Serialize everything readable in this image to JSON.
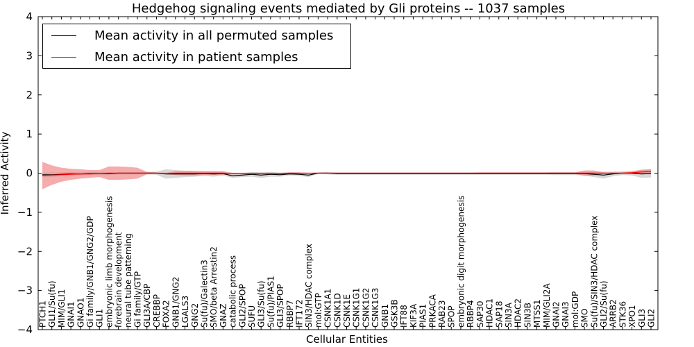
{
  "chart_data": {
    "type": "line",
    "title": "Hedgehog signaling events mediated by Gli proteins -- 1037 samples",
    "xlabel": "Cellular Entities",
    "ylabel": "Inferred Activity",
    "ylim": [
      -4,
      4
    ],
    "yticks": [
      -4,
      -3,
      -2,
      -1,
      0,
      1,
      2,
      3,
      4
    ],
    "ytick_labels": [
      "−4",
      "−3",
      "−2",
      "−1",
      "0",
      "1",
      "2",
      "3",
      "4"
    ],
    "categories": [
      "PTCH1",
      "GLI1/Su(fu)",
      "MIM/GLI1",
      "GNAI1",
      "GNAO1",
      "Gi family/GNB1/GNG2/GDP",
      "GLI1",
      "embryonic limb morphogenesis",
      "forebrain development",
      "neural tube patterning",
      "Gi family/GTP",
      "GLI3A/CBP",
      "CREBBP",
      "FOXA2",
      "GNB1/GNG2",
      "LGALS3",
      "GNG2",
      "Su(fu)/Galectin3",
      "SMO/beta Arrestin2",
      "GNAZ",
      "catabolic process",
      "GLI2/SPOP",
      "SUFU",
      "GLI3/Su(fu)",
      "Su(fu)/PIAS1",
      "GLI3/SPOP",
      "RBBP7",
      "IFT172",
      "SIN3/HDAC complex",
      "mol:GTP",
      "CSNK1A1",
      "CSNK1D",
      "CSNK1E",
      "CSNK1G1",
      "CSNK1G2",
      "CSNK1G3",
      "GNB1",
      "GSK3B",
      "IFT88",
      "KIF3A",
      "PIAS1",
      "PRKACA",
      "RAB23",
      "SPOP",
      "embryonic digit morphogenesis",
      "RBBP4",
      "SAP30",
      "HDAC1",
      "SAP18",
      "SIN3A",
      "HDAC2",
      "SIN3B",
      "MTSS1",
      "MIM/GLI2A",
      "GNAI2",
      "GNAI3",
      "mol:GDP",
      "SMO",
      "Su(fu)/SIN3/HDAC complex",
      "GLI2/Su(fu)",
      "ARRB2",
      "STK36",
      "XPO1",
      "GLI3",
      "GLI2"
    ],
    "series": [
      {
        "name": "Mean activity in all permuted samples",
        "color": "#000000",
        "band_color": "#c8c8c8",
        "values": [
          -0.04,
          -0.04,
          -0.03,
          -0.02,
          -0.02,
          -0.01,
          -0.01,
          -0.01,
          0,
          0,
          0,
          0,
          0,
          -0.02,
          -0.02,
          -0.02,
          -0.02,
          -0.01,
          -0.02,
          -0.01,
          -0.07,
          -0.05,
          -0.03,
          -0.05,
          -0.03,
          -0.04,
          -0.02,
          -0.03,
          -0.05,
          0,
          0,
          -0.01,
          -0.01,
          -0.01,
          -0.01,
          -0.01,
          -0.01,
          -0.01,
          -0.01,
          -0.01,
          -0.01,
          -0.01,
          -0.01,
          -0.01,
          -0.01,
          -0.01,
          -0.01,
          -0.01,
          -0.01,
          -0.01,
          -0.01,
          -0.01,
          -0.01,
          -0.01,
          -0.01,
          -0.01,
          -0.01,
          -0.01,
          -0.03,
          -0.05,
          -0.02,
          0,
          0,
          -0.02,
          -0.01
        ],
        "band_halfwidth": [
          0.06,
          0.06,
          0.05,
          0.05,
          0.04,
          0.04,
          0.04,
          0.04,
          0.03,
          0.03,
          0.03,
          0.03,
          0.04,
          0.12,
          0.1,
          0.08,
          0.07,
          0.06,
          0.07,
          0.05,
          0.05,
          0.05,
          0.06,
          0.07,
          0.06,
          0.05,
          0.04,
          0.04,
          0.05,
          0.02,
          0.03,
          0.03,
          0.03,
          0.03,
          0.03,
          0.03,
          0.03,
          0.03,
          0.03,
          0.03,
          0.03,
          0.03,
          0.03,
          0.03,
          0.03,
          0.03,
          0.03,
          0.03,
          0.03,
          0.03,
          0.03,
          0.03,
          0.03,
          0.03,
          0.04,
          0.04,
          0.04,
          0.05,
          0.07,
          0.09,
          0.06,
          0.05,
          0.06,
          0.1,
          0.1
        ]
      },
      {
        "name": "Mean activity in patient samples",
        "color": "#ff0000",
        "band_color": "#f08080",
        "values": [
          -0.06,
          -0.05,
          -0.04,
          -0.03,
          -0.02,
          -0.02,
          -0.01,
          0,
          0,
          0,
          0,
          0,
          0,
          -0.01,
          0,
          0,
          0,
          0,
          0,
          0,
          -0.01,
          -0.01,
          -0.01,
          -0.01,
          -0.01,
          -0.01,
          0,
          0,
          0,
          0,
          0,
          0,
          0,
          0,
          0,
          0,
          0,
          0,
          0,
          0,
          0,
          0,
          0,
          0,
          0,
          0,
          0,
          0,
          0,
          0,
          0,
          0,
          0,
          0,
          0,
          0,
          0,
          0,
          0,
          0,
          0,
          0,
          0.01,
          0.03,
          0.04
        ],
        "band_halfwidth": [
          0.35,
          0.25,
          0.18,
          0.14,
          0.12,
          0.1,
          0.09,
          0.17,
          0.17,
          0.16,
          0.14,
          0.03,
          0.02,
          0.02,
          0.05,
          0.06,
          0.06,
          0.05,
          0.05,
          0.05,
          0.02,
          0.02,
          0.02,
          0.02,
          0.02,
          0.02,
          0.02,
          0.02,
          0.01,
          0.01,
          0.01,
          0.01,
          0.01,
          0.01,
          0.01,
          0.01,
          0.01,
          0.01,
          0.01,
          0.01,
          0.01,
          0.01,
          0.01,
          0.01,
          0.01,
          0.01,
          0.02,
          0.02,
          0.02,
          0.02,
          0.02,
          0.02,
          0.02,
          0.02,
          0.02,
          0.02,
          0.02,
          0.07,
          0.07,
          0.02,
          0.02,
          0.02,
          0.03,
          0.06,
          0.06
        ]
      }
    ],
    "legend_location": "top-left"
  }
}
